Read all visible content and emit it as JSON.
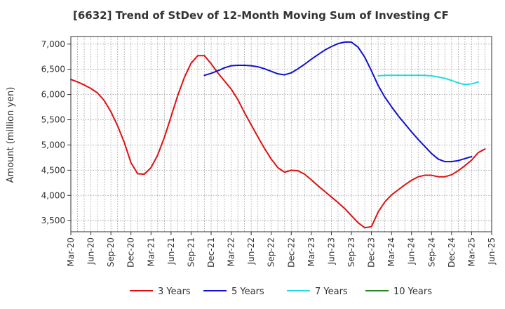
{
  "chart_data": {
    "type": "line",
    "title": "[6632]  Trend of StDev of 12-Month Moving Sum of Investing CF",
    "xlabel": "",
    "ylabel": "Amount (million yen)",
    "x_ticks": [
      "Mar-20",
      "Jun-20",
      "Sep-20",
      "Dec-20",
      "Mar-21",
      "Jun-21",
      "Sep-21",
      "Dec-21",
      "Mar-22",
      "Jun-22",
      "Sep-22",
      "Dec-22",
      "Mar-23",
      "Jun-23",
      "Sep-23",
      "Dec-23",
      "Mar-24",
      "Jun-24",
      "Sep-24",
      "Dec-24",
      "Mar-25",
      "Jun-25"
    ],
    "y_ticks": [
      3500,
      4000,
      4500,
      5000,
      5500,
      6000,
      6500,
      7000
    ],
    "y_tick_labels": [
      "3,500",
      "4,000",
      "4,500",
      "5,000",
      "5,500",
      "6,000",
      "6,500",
      "7,000"
    ],
    "ylim": [
      3280,
      7150
    ],
    "grid": true,
    "legend_position": "bottom",
    "series": [
      {
        "name": "3 Years",
        "color": "#dd1111",
        "values": [
          [
            0,
            6300
          ],
          [
            1,
            6250
          ],
          [
            2,
            6190
          ],
          [
            3,
            6120
          ],
          [
            4,
            6030
          ],
          [
            5,
            5880
          ],
          [
            6,
            5660
          ],
          [
            7,
            5380
          ],
          [
            8,
            5050
          ],
          [
            9,
            4650
          ],
          [
            10,
            4430
          ],
          [
            11,
            4420
          ],
          [
            12,
            4550
          ],
          [
            13,
            4800
          ],
          [
            14,
            5150
          ],
          [
            15,
            5560
          ],
          [
            16,
            5980
          ],
          [
            17,
            6340
          ],
          [
            18,
            6620
          ],
          [
            19,
            6770
          ],
          [
            20,
            6770
          ],
          [
            21,
            6610
          ],
          [
            22,
            6430
          ],
          [
            23,
            6270
          ],
          [
            24,
            6110
          ],
          [
            25,
            5900
          ],
          [
            26,
            5640
          ],
          [
            27,
            5400
          ],
          [
            28,
            5160
          ],
          [
            29,
            4930
          ],
          [
            30,
            4720
          ],
          [
            31,
            4550
          ],
          [
            32,
            4460
          ],
          [
            33,
            4500
          ],
          [
            34,
            4490
          ],
          [
            35,
            4420
          ],
          [
            36,
            4310
          ],
          [
            37,
            4190
          ],
          [
            38,
            4080
          ],
          [
            39,
            3970
          ],
          [
            40,
            3860
          ],
          [
            41,
            3740
          ],
          [
            42,
            3600
          ],
          [
            43,
            3460
          ],
          [
            44,
            3360
          ],
          [
            45,
            3380
          ],
          [
            46,
            3670
          ],
          [
            47,
            3870
          ],
          [
            48,
            4010
          ],
          [
            49,
            4110
          ],
          [
            50,
            4210
          ],
          [
            51,
            4300
          ],
          [
            52,
            4370
          ],
          [
            53,
            4400
          ],
          [
            54,
            4400
          ],
          [
            55,
            4370
          ],
          [
            56,
            4370
          ],
          [
            57,
            4410
          ],
          [
            58,
            4490
          ],
          [
            59,
            4590
          ],
          [
            60,
            4700
          ],
          [
            61,
            4850
          ],
          [
            62,
            4920
          ]
        ]
      },
      {
        "name": "5 Years",
        "color": "#1111cc",
        "values": [
          [
            20,
            6380
          ],
          [
            21,
            6420
          ],
          [
            22,
            6470
          ],
          [
            23,
            6530
          ],
          [
            24,
            6570
          ],
          [
            25,
            6580
          ],
          [
            26,
            6580
          ],
          [
            27,
            6570
          ],
          [
            28,
            6550
          ],
          [
            29,
            6510
          ],
          [
            30,
            6460
          ],
          [
            31,
            6410
          ],
          [
            32,
            6390
          ],
          [
            33,
            6430
          ],
          [
            34,
            6510
          ],
          [
            35,
            6600
          ],
          [
            36,
            6700
          ],
          [
            37,
            6790
          ],
          [
            38,
            6880
          ],
          [
            39,
            6950
          ],
          [
            40,
            7010
          ],
          [
            41,
            7040
          ],
          [
            42,
            7040
          ],
          [
            43,
            6940
          ],
          [
            44,
            6740
          ],
          [
            45,
            6470
          ],
          [
            46,
            6180
          ],
          [
            47,
            5950
          ],
          [
            48,
            5760
          ],
          [
            49,
            5580
          ],
          [
            50,
            5420
          ],
          [
            51,
            5260
          ],
          [
            52,
            5110
          ],
          [
            53,
            4970
          ],
          [
            54,
            4830
          ],
          [
            55,
            4720
          ],
          [
            56,
            4670
          ],
          [
            57,
            4670
          ],
          [
            58,
            4690
          ],
          [
            59,
            4730
          ],
          [
            60,
            4770
          ]
        ]
      },
      {
        "name": "7 Years",
        "color": "#22dddd",
        "values": [
          [
            46,
            6370
          ],
          [
            47,
            6380
          ],
          [
            48,
            6380
          ],
          [
            49,
            6380
          ],
          [
            50,
            6380
          ],
          [
            51,
            6380
          ],
          [
            52,
            6380
          ],
          [
            53,
            6380
          ],
          [
            54,
            6370
          ],
          [
            55,
            6350
          ],
          [
            56,
            6320
          ],
          [
            57,
            6280
          ],
          [
            58,
            6230
          ],
          [
            59,
            6200
          ],
          [
            60,
            6210
          ],
          [
            61,
            6250
          ]
        ]
      },
      {
        "name": "10 Years",
        "color": "#228822",
        "values": []
      }
    ]
  }
}
